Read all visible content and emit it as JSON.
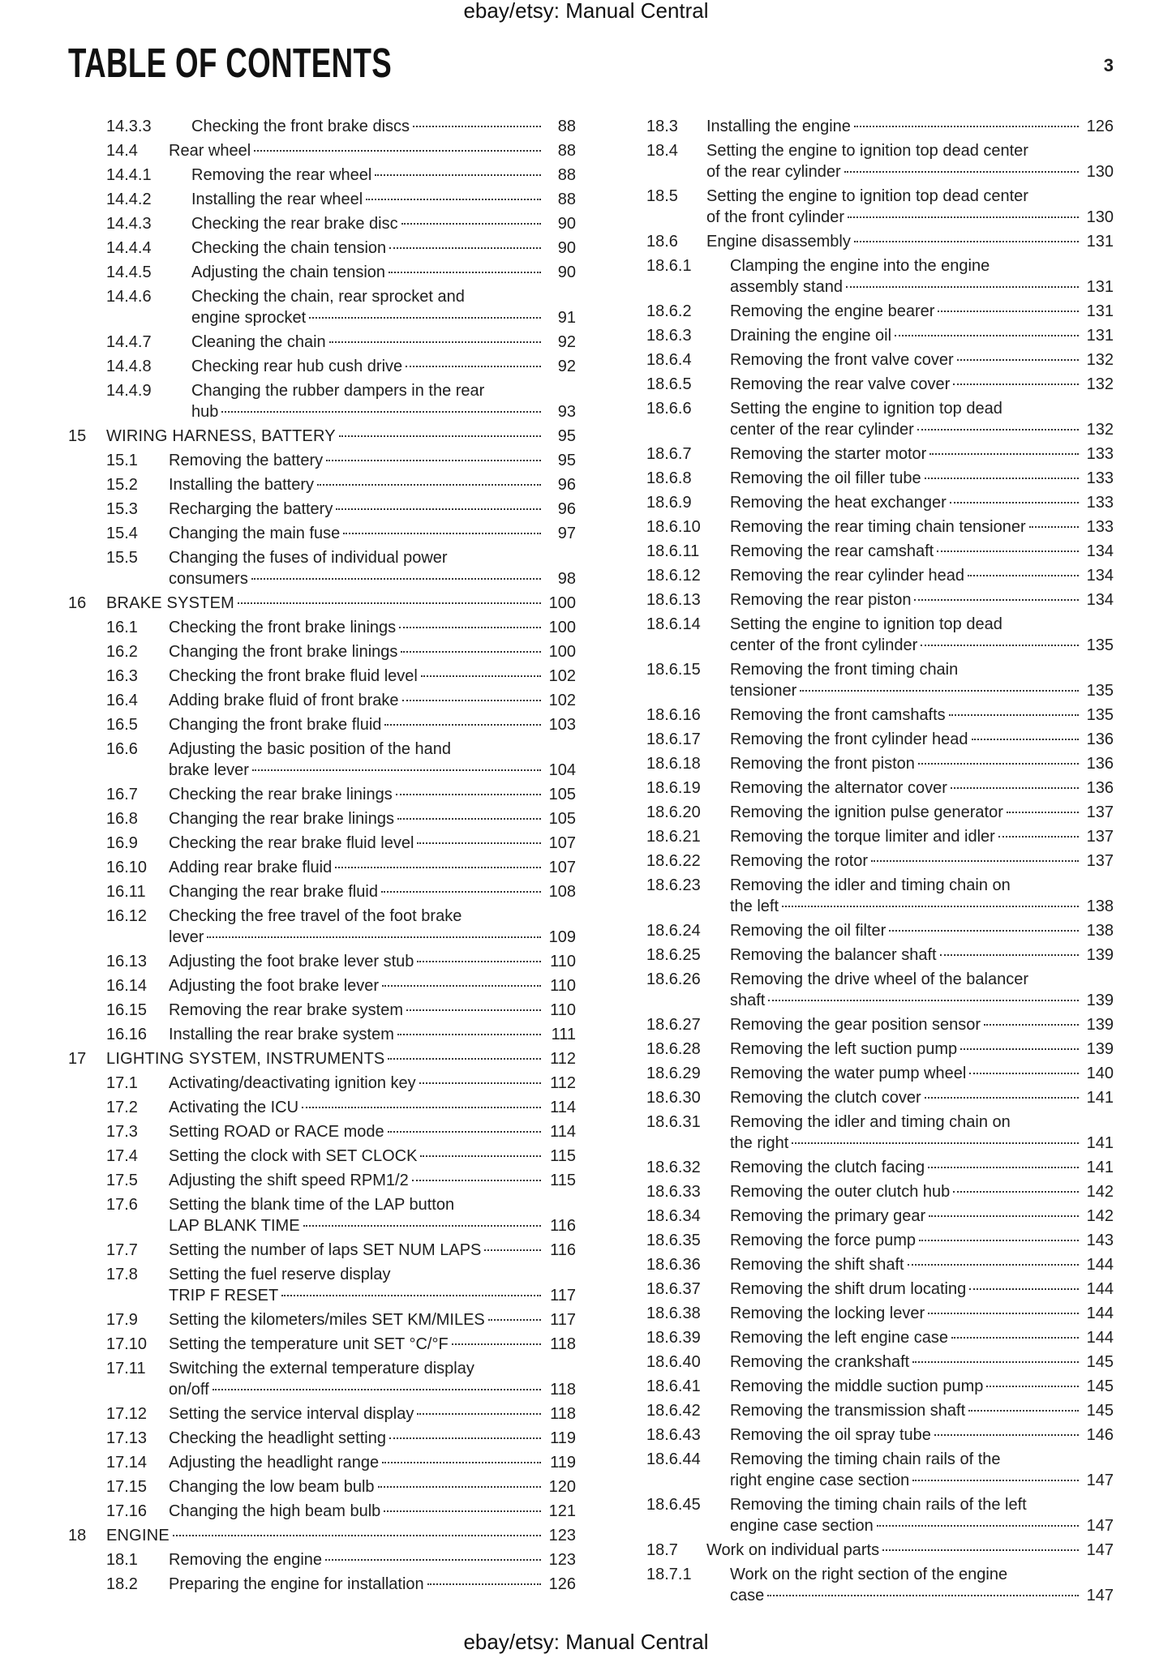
{
  "watermark": "ebay/etsy: Manual Central",
  "title": "TABLE OF CONTENTS",
  "page_number": "3",
  "columns": [
    [
      {
        "num": "14.3.3",
        "title": "Checking the front brake discs",
        "page": "88",
        "level": 3
      },
      {
        "num": "14.4",
        "title": "Rear wheel",
        "page": "88",
        "level": 2
      },
      {
        "num": "14.4.1",
        "title": "Removing the rear wheel",
        "page": "88",
        "level": 3
      },
      {
        "num": "14.4.2",
        "title": "Installing the rear wheel",
        "page": "88",
        "level": 3
      },
      {
        "num": "14.4.3",
        "title": "Checking the rear brake disc",
        "page": "90",
        "level": 3
      },
      {
        "num": "14.4.4",
        "title": "Checking the chain tension",
        "page": "90",
        "level": 3
      },
      {
        "num": "14.4.5",
        "title": "Adjusting the chain tension",
        "page": "90",
        "level": 3
      },
      {
        "num": "14.4.6",
        "title": "Checking the chain, rear sprocket and",
        "title_cont": "engine sprocket",
        "page": "91",
        "level": 3
      },
      {
        "num": "14.4.7",
        "title": "Cleaning the chain",
        "page": "92",
        "level": 3
      },
      {
        "num": "14.4.8",
        "title": "Checking rear hub cush drive",
        "page": "92",
        "level": 3
      },
      {
        "num": "14.4.9",
        "title": "Changing the rubber dampers in the rear",
        "title_cont": "hub",
        "page": "93",
        "level": 3
      },
      {
        "num": "15",
        "title": "WIRING HARNESS, BATTERY",
        "page": "95",
        "level": 1
      },
      {
        "num": "15.1",
        "title": "Removing the battery",
        "page": "95",
        "level": 2
      },
      {
        "num": "15.2",
        "title": "Installing the battery",
        "page": "96",
        "level": 2
      },
      {
        "num": "15.3",
        "title": "Recharging the battery",
        "page": "96",
        "level": 2
      },
      {
        "num": "15.4",
        "title": "Changing the main fuse",
        "page": "97",
        "level": 2
      },
      {
        "num": "15.5",
        "title": "Changing the fuses of individual power",
        "title_cont": "consumers",
        "page": "98",
        "level": 2
      },
      {
        "num": "16",
        "title": "BRAKE SYSTEM",
        "page": "100",
        "level": 1
      },
      {
        "num": "16.1",
        "title": "Checking the front brake linings",
        "page": "100",
        "level": 2
      },
      {
        "num": "16.2",
        "title": "Changing the front brake linings",
        "page": "100",
        "level": 2
      },
      {
        "num": "16.3",
        "title": "Checking the front brake fluid level",
        "page": "102",
        "level": 2
      },
      {
        "num": "16.4",
        "title": "Adding brake fluid of front brake",
        "page": "102",
        "level": 2
      },
      {
        "num": "16.5",
        "title": "Changing the front brake fluid",
        "page": "103",
        "level": 2
      },
      {
        "num": "16.6",
        "title": "Adjusting the basic position of the hand",
        "title_cont": "brake lever",
        "page": "104",
        "level": 2
      },
      {
        "num": "16.7",
        "title": "Checking the rear brake linings",
        "page": "105",
        "level": 2
      },
      {
        "num": "16.8",
        "title": "Changing the rear brake linings",
        "page": "105",
        "level": 2
      },
      {
        "num": "16.9",
        "title": "Checking the rear brake fluid level",
        "page": "107",
        "level": 2
      },
      {
        "num": "16.10",
        "title": "Adding rear brake fluid",
        "page": "107",
        "level": 2
      },
      {
        "num": "16.11",
        "title": "Changing the rear brake fluid",
        "page": "108",
        "level": 2
      },
      {
        "num": "16.12",
        "title": "Checking the free travel of the foot brake",
        "title_cont": "lever",
        "page": "109",
        "level": 2
      },
      {
        "num": "16.13",
        "title": "Adjusting the foot brake lever stub",
        "page": "110",
        "level": 2
      },
      {
        "num": "16.14",
        "title": "Adjusting the foot brake lever",
        "page": "110",
        "level": 2
      },
      {
        "num": "16.15",
        "title": "Removing the rear brake system",
        "page": "110",
        "level": 2
      },
      {
        "num": "16.16",
        "title": "Installing the rear brake system",
        "page": "111",
        "level": 2
      },
      {
        "num": "17",
        "title": "LIGHTING SYSTEM, INSTRUMENTS",
        "page": "112",
        "level": 1
      },
      {
        "num": "17.1",
        "title": "Activating/deactivating ignition key",
        "page": "112",
        "level": 2
      },
      {
        "num": "17.2",
        "title": "Activating the ICU",
        "page": "114",
        "level": 2
      },
      {
        "num": "17.3",
        "title": "Setting ROAD or RACE mode",
        "page": "114",
        "level": 2
      },
      {
        "num": "17.4",
        "title": "Setting the clock with SET CLOCK",
        "page": "115",
        "level": 2
      },
      {
        "num": "17.5",
        "title": "Adjusting the shift speed RPM1/2",
        "page": "115",
        "level": 2
      },
      {
        "num": "17.6",
        "title": "Setting the blank time of the LAP button",
        "title_cont": "LAP BLANK TIME",
        "page": "116",
        "level": 2
      },
      {
        "num": "17.7",
        "title": "Setting the number of laps SET NUM LAPS",
        "page": "116",
        "level": 2
      },
      {
        "num": "17.8",
        "title": "Setting the fuel reserve display",
        "title_cont": "TRIP F RESET",
        "page": "117",
        "level": 2
      },
      {
        "num": "17.9",
        "title": "Setting the kilometers/miles SET KM/MILES",
        "page": "117",
        "level": 2
      },
      {
        "num": "17.10",
        "title": "Setting the temperature unit SET °C/°F",
        "page": "118",
        "level": 2
      },
      {
        "num": "17.11",
        "title": "Switching the external temperature display",
        "title_cont": "on/off",
        "page": "118",
        "level": 2
      },
      {
        "num": "17.12",
        "title": "Setting the service interval display",
        "page": "118",
        "level": 2
      },
      {
        "num": "17.13",
        "title": "Checking the headlight setting",
        "page": "119",
        "level": 2
      },
      {
        "num": "17.14",
        "title": "Adjusting the headlight range",
        "page": "119",
        "level": 2
      },
      {
        "num": "17.15",
        "title": "Changing the low beam bulb",
        "page": "120",
        "level": 2
      },
      {
        "num": "17.16",
        "title": "Changing the high beam bulb",
        "page": "121",
        "level": 2
      },
      {
        "num": "18",
        "title": "ENGINE",
        "page": "123",
        "level": 1
      },
      {
        "num": "18.1",
        "title": "Removing the engine",
        "page": "123",
        "level": 2
      },
      {
        "num": "18.2",
        "title": "Preparing the engine for installation",
        "page": "126",
        "level": 2
      }
    ],
    [
      {
        "num": "18.3",
        "title": "Installing the engine",
        "page": "126",
        "level": 2
      },
      {
        "num": "18.4",
        "title": "Setting the engine to ignition top dead center",
        "title_cont": "of the rear cylinder",
        "page": "130",
        "level": 2
      },
      {
        "num": "18.5",
        "title": "Setting the engine to ignition top dead center",
        "title_cont": "of the front cylinder",
        "page": "130",
        "level": 2
      },
      {
        "num": "18.6",
        "title": "Engine disassembly",
        "page": "131",
        "level": 2
      },
      {
        "num": "18.6.1",
        "title": "Clamping the engine into the engine",
        "title_cont": "assembly stand",
        "page": "131",
        "level": 3
      },
      {
        "num": "18.6.2",
        "title": "Removing the engine bearer",
        "page": "131",
        "level": 3
      },
      {
        "num": "18.6.3",
        "title": "Draining the engine oil",
        "page": "131",
        "level": 3
      },
      {
        "num": "18.6.4",
        "title": "Removing the front valve cover",
        "page": "132",
        "level": 3
      },
      {
        "num": "18.6.5",
        "title": "Removing the rear valve cover",
        "page": "132",
        "level": 3
      },
      {
        "num": "18.6.6",
        "title": "Setting the engine to ignition top dead",
        "title_cont": "center of the rear cylinder",
        "page": "132",
        "level": 3
      },
      {
        "num": "18.6.7",
        "title": "Removing the starter motor",
        "page": "133",
        "level": 3
      },
      {
        "num": "18.6.8",
        "title": "Removing the oil filler tube",
        "page": "133",
        "level": 3
      },
      {
        "num": "18.6.9",
        "title": "Removing the heat exchanger",
        "page": "133",
        "level": 3
      },
      {
        "num": "18.6.10",
        "title": "Removing the rear timing chain tensioner",
        "page": "133",
        "level": 3
      },
      {
        "num": "18.6.11",
        "title": "Removing the rear camshaft",
        "page": "134",
        "level": 3
      },
      {
        "num": "18.6.12",
        "title": "Removing the rear cylinder head",
        "page": "134",
        "level": 3
      },
      {
        "num": "18.6.13",
        "title": "Removing the rear piston",
        "page": "134",
        "level": 3
      },
      {
        "num": "18.6.14",
        "title": "Setting the engine to ignition top dead",
        "title_cont": "center of the front cylinder",
        "page": "135",
        "level": 3
      },
      {
        "num": "18.6.15",
        "title": "Removing the front timing chain",
        "title_cont": "tensioner",
        "page": "135",
        "level": 3
      },
      {
        "num": "18.6.16",
        "title": "Removing the front camshafts",
        "page": "135",
        "level": 3
      },
      {
        "num": "18.6.17",
        "title": "Removing the front cylinder head",
        "page": "136",
        "level": 3
      },
      {
        "num": "18.6.18",
        "title": "Removing the front piston",
        "page": "136",
        "level": 3
      },
      {
        "num": "18.6.19",
        "title": "Removing the alternator cover",
        "page": "136",
        "level": 3
      },
      {
        "num": "18.6.20",
        "title": "Removing the ignition pulse generator",
        "page": "137",
        "level": 3
      },
      {
        "num": "18.6.21",
        "title": "Removing the torque limiter and idler",
        "page": "137",
        "level": 3
      },
      {
        "num": "18.6.22",
        "title": "Removing the rotor",
        "page": "137",
        "level": 3
      },
      {
        "num": "18.6.23",
        "title": "Removing the idler and timing chain on",
        "title_cont": "the left",
        "page": "138",
        "level": 3
      },
      {
        "num": "18.6.24",
        "title": "Removing the oil filter",
        "page": "138",
        "level": 3
      },
      {
        "num": "18.6.25",
        "title": "Removing the balancer shaft",
        "page": "139",
        "level": 3
      },
      {
        "num": "18.6.26",
        "title": "Removing the drive wheel of the balancer",
        "title_cont": "shaft",
        "page": "139",
        "level": 3
      },
      {
        "num": "18.6.27",
        "title": "Removing the gear position sensor",
        "page": "139",
        "level": 3
      },
      {
        "num": "18.6.28",
        "title": "Removing the left suction pump",
        "page": "139",
        "level": 3
      },
      {
        "num": "18.6.29",
        "title": "Removing the water pump wheel",
        "page": "140",
        "level": 3
      },
      {
        "num": "18.6.30",
        "title": "Removing the clutch cover",
        "page": "141",
        "level": 3
      },
      {
        "num": "18.6.31",
        "title": "Removing the idler and timing chain on",
        "title_cont": "the right",
        "page": "141",
        "level": 3
      },
      {
        "num": "18.6.32",
        "title": "Removing the clutch facing",
        "page": "141",
        "level": 3
      },
      {
        "num": "18.6.33",
        "title": "Removing the outer clutch hub",
        "page": "142",
        "level": 3
      },
      {
        "num": "18.6.34",
        "title": "Removing the primary gear",
        "page": "142",
        "level": 3
      },
      {
        "num": "18.6.35",
        "title": "Removing the force pump",
        "page": "143",
        "level": 3
      },
      {
        "num": "18.6.36",
        "title": "Removing the shift shaft",
        "page": "144",
        "level": 3
      },
      {
        "num": "18.6.37",
        "title": "Removing the shift drum locating",
        "page": "144",
        "level": 3
      },
      {
        "num": "18.6.38",
        "title": "Removing the locking lever",
        "page": "144",
        "level": 3
      },
      {
        "num": "18.6.39",
        "title": "Removing the left engine case",
        "page": "144",
        "level": 3
      },
      {
        "num": "18.6.40",
        "title": "Removing the crankshaft",
        "page": "145",
        "level": 3
      },
      {
        "num": "18.6.41",
        "title": "Removing the middle suction pump",
        "page": "145",
        "level": 3
      },
      {
        "num": "18.6.42",
        "title": "Removing the transmission shaft",
        "page": "145",
        "level": 3
      },
      {
        "num": "18.6.43",
        "title": "Removing the oil spray tube",
        "page": "146",
        "level": 3
      },
      {
        "num": "18.6.44",
        "title": "Removing the timing chain rails of the",
        "title_cont": "right engine case section",
        "page": "147",
        "level": 3
      },
      {
        "num": "18.6.45",
        "title": "Removing the timing chain rails of the left",
        "title_cont": "engine case section",
        "page": "147",
        "level": 3
      },
      {
        "num": "18.7",
        "title": "Work on individual parts",
        "page": "147",
        "level": 2
      },
      {
        "num": "18.7.1",
        "title": "Work on the right section of the engine",
        "title_cont": "case",
        "page": "147",
        "level": 3
      }
    ]
  ]
}
